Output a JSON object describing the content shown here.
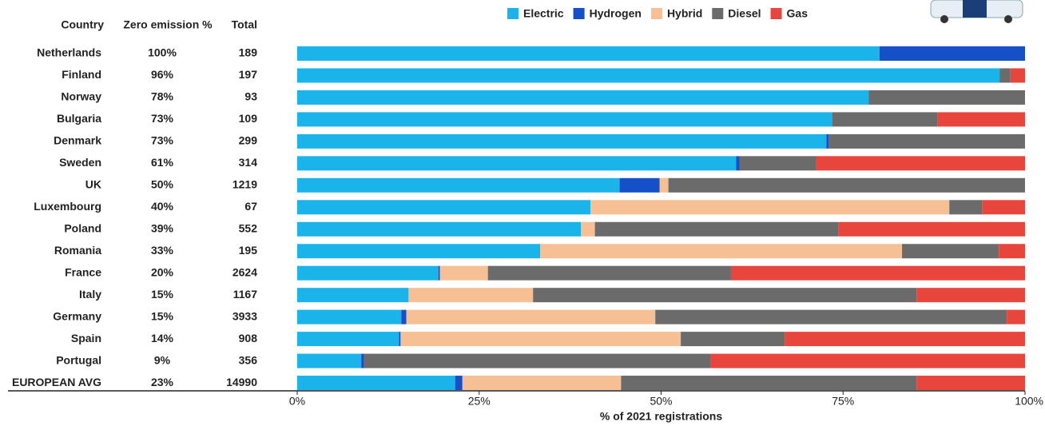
{
  "chart_data": {
    "type": "stacked-bar-horizontal",
    "categories": [
      "Netherlands",
      "Finland",
      "Norway",
      "Bulgaria",
      "Denmark",
      "Sweden",
      "UK",
      "Luxembourg",
      "Poland",
      "Romania",
      "France",
      "Italy",
      "Germany",
      "Spain",
      "Portugal",
      "EUROPEAN AVG"
    ],
    "series": [
      {
        "name": "Electric",
        "color": "#1bb4ea",
        "values": [
          80,
          96.5,
          78.5,
          73.5,
          72.7,
          60.3,
          44.3,
          40.3,
          39,
          33.4,
          19.4,
          15.3,
          14.3,
          14,
          8.8,
          21.7
        ]
      },
      {
        "name": "Hydrogen",
        "color": "#1550c8",
        "values": [
          20,
          0,
          0,
          0,
          0.3,
          0.5,
          5.5,
          0,
          0,
          0,
          0.2,
          0,
          0.7,
          0.2,
          0.4,
          1
        ]
      },
      {
        "name": "Hybrid",
        "color": "#f7bf94",
        "values": [
          0,
          0,
          0,
          0,
          0,
          0,
          1.2,
          49.3,
          1.9,
          49.7,
          6.6,
          17.1,
          34.2,
          38.5,
          0,
          21.8
        ]
      },
      {
        "name": "Diesel",
        "color": "#6b6b6b",
        "values": [
          0,
          1.5,
          21.5,
          14.5,
          27,
          10.5,
          49,
          4.5,
          33.5,
          13.3,
          33.4,
          52.7,
          48.3,
          14.3,
          47.6,
          40.6
        ]
      },
      {
        "name": "Gas",
        "color": "#e8463d",
        "values": [
          0,
          2,
          0,
          12,
          0,
          28.7,
          0,
          5.9,
          25.6,
          3.6,
          40.4,
          14.9,
          2.5,
          33,
          43.2,
          14.9
        ]
      }
    ],
    "xlim": [
      0,
      100
    ],
    "xticks": [
      {
        "value": 0,
        "label": "0%"
      },
      {
        "value": 25,
        "label": "25%"
      },
      {
        "value": 50,
        "label": "50%"
      },
      {
        "value": 75,
        "label": "75%"
      },
      {
        "value": 100,
        "label": "100%"
      }
    ],
    "xlabel": "% of 2021 registrations",
    "legend": "top",
    "table": {
      "headers": [
        "Country",
        "Zero emission %",
        "Total"
      ],
      "zero_emission": [
        "100%",
        "96%",
        "78%",
        "73%",
        "73%",
        "61%",
        "50%",
        "40%",
        "39%",
        "33%",
        "20%",
        "15%",
        "15%",
        "14%",
        "9%",
        "23%"
      ],
      "total": [
        189,
        197,
        93,
        109,
        299,
        314,
        1219,
        67,
        552,
        195,
        2624,
        1167,
        3933,
        908,
        356,
        14990
      ]
    }
  }
}
